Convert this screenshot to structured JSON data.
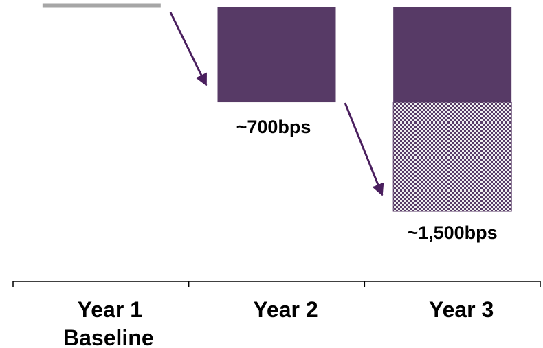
{
  "chart_data": {
    "type": "bar",
    "categories": [
      {
        "line1": "Year 1",
        "line2": "Baseline"
      },
      {
        "line1": "Year 2",
        "line2": ""
      },
      {
        "line1": "Year 3",
        "line2": ""
      }
    ],
    "series": [
      {
        "key": "year2_gain",
        "values": [
          0,
          700,
          700
        ],
        "pattern": "solid"
      },
      {
        "key": "year3_additional",
        "values": [
          0,
          0,
          800
        ],
        "pattern": "checkered"
      }
    ],
    "data_labels": [
      "",
      "~700bps",
      "~1,500bps"
    ],
    "ylim": [
      0,
      1500
    ],
    "grid": false,
    "legend": "none",
    "colors": {
      "bar": "#573A66",
      "baseline": "#A6A6A6",
      "arrow": "#4A1F5E",
      "pattern_light": "#EEEEEE",
      "axis": "#000000"
    }
  }
}
